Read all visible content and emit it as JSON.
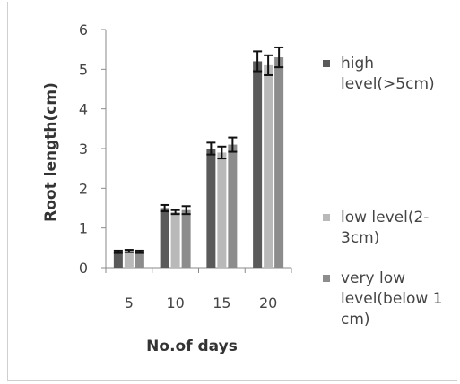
{
  "chart_data": {
    "type": "bar",
    "title": "",
    "xlabel": "No.of days",
    "ylabel": "Root length(cm)",
    "categories": [
      "5",
      "10",
      "15",
      "20"
    ],
    "ylim": [
      0,
      6
    ],
    "yticks": [
      "0",
      "1",
      "2",
      "3",
      "4",
      "5",
      "6"
    ],
    "grid": false,
    "legend_position": "right",
    "series": [
      {
        "name": "high level(>5cm)",
        "values": [
          0.4,
          1.5,
          3.0,
          5.2
        ],
        "errors": [
          0.03,
          0.08,
          0.15,
          0.25
        ],
        "color": "#5a5a5a"
      },
      {
        "name": "low level(2-3cm)",
        "values": [
          0.42,
          1.4,
          2.9,
          5.1
        ],
        "errors": [
          0.03,
          0.05,
          0.15,
          0.25
        ],
        "color": "#b9b9b9"
      },
      {
        "name": "very low level(below 1 cm)",
        "values": [
          0.4,
          1.45,
          3.1,
          5.3
        ],
        "errors": [
          0.03,
          0.1,
          0.18,
          0.25
        ],
        "color": "#8c8c8c"
      }
    ]
  }
}
